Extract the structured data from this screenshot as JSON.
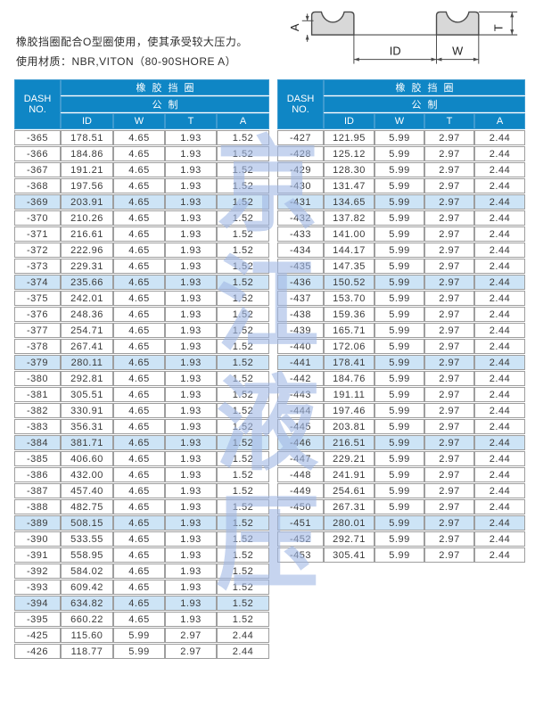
{
  "page": {
    "description_line1": "橡胶挡圈配合O型圈使用，使其承受较大压力。",
    "description_line2": "使用材质：NBR,VITON（80-90SHORE A）"
  },
  "watermark": {
    "text": "京江液压"
  },
  "colors": {
    "header_blue": "#0f86c5",
    "highlight_row": "#cde4f6",
    "border_gray": "#9e9e9e",
    "watermark_blue": "#a0b8e4",
    "diagram_fill": "#d8d8d8"
  },
  "diagram": {
    "labels": {
      "a": "A",
      "t": "T",
      "id": "ID",
      "w": "W"
    }
  },
  "tables": [
    {
      "side": "left",
      "header": {
        "dash": "DASH NO.",
        "group": "橡胶挡圈",
        "subgroup": "公制",
        "columns": [
          "ID",
          "W",
          "T",
          "A"
        ]
      },
      "rows": [
        [
          "-365",
          "178.51",
          "4.65",
          "1.93",
          "1.52"
        ],
        [
          "-366",
          "184.86",
          "4.65",
          "1.93",
          "1.52"
        ],
        [
          "-367",
          "191.21",
          "4.65",
          "1.93",
          "1.52"
        ],
        [
          "-368",
          "197.56",
          "4.65",
          "1.93",
          "1.52"
        ],
        [
          "-369",
          "203.91",
          "4.65",
          "1.93",
          "1.52"
        ],
        [
          "-370",
          "210.26",
          "4.65",
          "1.93",
          "1.52"
        ],
        [
          "-371",
          "216.61",
          "4.65",
          "1.93",
          "1.52"
        ],
        [
          "-372",
          "222.96",
          "4.65",
          "1.93",
          "1.52"
        ],
        [
          "-373",
          "229.31",
          "4.65",
          "1.93",
          "1.52"
        ],
        [
          "-374",
          "235.66",
          "4.65",
          "1.93",
          "1.52"
        ],
        [
          "-375",
          "242.01",
          "4.65",
          "1.93",
          "1.52"
        ],
        [
          "-376",
          "248.36",
          "4.65",
          "1.93",
          "1.52"
        ],
        [
          "-377",
          "254.71",
          "4.65",
          "1.93",
          "1.52"
        ],
        [
          "-378",
          "267.41",
          "4.65",
          "1.93",
          "1.52"
        ],
        [
          "-379",
          "280.11",
          "4.65",
          "1.93",
          "1.52"
        ],
        [
          "-380",
          "292.81",
          "4.65",
          "1.93",
          "1.52"
        ],
        [
          "-381",
          "305.51",
          "4.65",
          "1.93",
          "1.52"
        ],
        [
          "-382",
          "330.91",
          "4.65",
          "1.93",
          "1.52"
        ],
        [
          "-383",
          "356.31",
          "4.65",
          "1.93",
          "1.52"
        ],
        [
          "-384",
          "381.71",
          "4.65",
          "1.93",
          "1.52"
        ],
        [
          "-385",
          "406.60",
          "4.65",
          "1.93",
          "1.52"
        ],
        [
          "-386",
          "432.00",
          "4.65",
          "1.93",
          "1.52"
        ],
        [
          "-387",
          "457.40",
          "4.65",
          "1.93",
          "1.52"
        ],
        [
          "-388",
          "482.75",
          "4.65",
          "1.93",
          "1.52"
        ],
        [
          "-389",
          "508.15",
          "4.65",
          "1.93",
          "1.52"
        ],
        [
          "-390",
          "533.55",
          "4.65",
          "1.93",
          "1.52"
        ],
        [
          "-391",
          "558.95",
          "4.65",
          "1.93",
          "1.52"
        ],
        [
          "-392",
          "584.02",
          "4.65",
          "1.93",
          "1.52"
        ],
        [
          "-393",
          "609.42",
          "4.65",
          "1.93",
          "1.52"
        ],
        [
          "-394",
          "634.82",
          "4.65",
          "1.93",
          "1.52"
        ],
        [
          "-395",
          "660.22",
          "4.65",
          "1.93",
          "1.52"
        ],
        [
          "-425",
          "115.60",
          "5.99",
          "2.97",
          "2.44"
        ],
        [
          "-426",
          "118.77",
          "5.99",
          "2.97",
          "2.44"
        ]
      ]
    },
    {
      "side": "right",
      "header": {
        "dash": "DASH NO.",
        "group": "橡胶挡圈",
        "subgroup": "公制",
        "columns": [
          "ID",
          "W",
          "T",
          "A"
        ]
      },
      "rows": [
        [
          "-427",
          "121.95",
          "5.99",
          "2.97",
          "2.44"
        ],
        [
          "-428",
          "125.12",
          "5.99",
          "2.97",
          "2.44"
        ],
        [
          "-429",
          "128.30",
          "5.99",
          "2.97",
          "2.44"
        ],
        [
          "-430",
          "131.47",
          "5.99",
          "2.97",
          "2.44"
        ],
        [
          "-431",
          "134.65",
          "5.99",
          "2.97",
          "2.44"
        ],
        [
          "-432",
          "137.82",
          "5.99",
          "2.97",
          "2.44"
        ],
        [
          "-433",
          "141.00",
          "5.99",
          "2.97",
          "2.44"
        ],
        [
          "-434",
          "144.17",
          "5.99",
          "2.97",
          "2.44"
        ],
        [
          "-435",
          "147.35",
          "5.99",
          "2.97",
          "2.44"
        ],
        [
          "-436",
          "150.52",
          "5.99",
          "2.97",
          "2.44"
        ],
        [
          "-437",
          "153.70",
          "5.99",
          "2.97",
          "2.44"
        ],
        [
          "-438",
          "159.36",
          "5.99",
          "2.97",
          "2.44"
        ],
        [
          "-439",
          "165.71",
          "5.99",
          "2.97",
          "2.44"
        ],
        [
          "-440",
          "172.06",
          "5.99",
          "2.97",
          "2.44"
        ],
        [
          "-441",
          "178.41",
          "5.99",
          "2.97",
          "2.44"
        ],
        [
          "-442",
          "184.76",
          "5.99",
          "2.97",
          "2.44"
        ],
        [
          "-443",
          "191.11",
          "5.99",
          "2.97",
          "2.44"
        ],
        [
          "-444",
          "197.46",
          "5.99",
          "2.97",
          "2.44"
        ],
        [
          "-445",
          "203.81",
          "5.99",
          "2.97",
          "2.44"
        ],
        [
          "-446",
          "216.51",
          "5.99",
          "2.97",
          "2.44"
        ],
        [
          "-447",
          "229.21",
          "5.99",
          "2.97",
          "2.44"
        ],
        [
          "-448",
          "241.91",
          "5.99",
          "2.97",
          "2.44"
        ],
        [
          "-449",
          "254.61",
          "5.99",
          "2.97",
          "2.44"
        ],
        [
          "-450",
          "267.31",
          "5.99",
          "2.97",
          "2.44"
        ],
        [
          "-451",
          "280.01",
          "5.99",
          "2.97",
          "2.44"
        ],
        [
          "-452",
          "292.71",
          "5.99",
          "2.97",
          "2.44"
        ],
        [
          "-453",
          "305.41",
          "5.99",
          "2.97",
          "2.44"
        ]
      ]
    }
  ]
}
